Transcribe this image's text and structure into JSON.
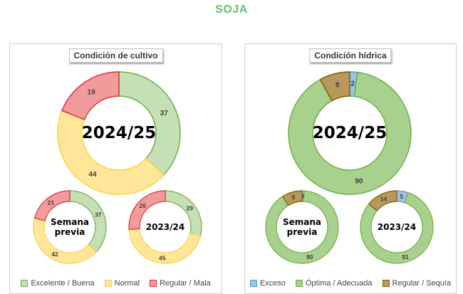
{
  "title": "SOJA",
  "chart_data": [
    {
      "type": "pie",
      "title": "Condición de cultivo",
      "legend_position": "bottom",
      "categories": [
        "Excelente / Buena",
        "Normal",
        "Regular / Mala"
      ],
      "colors": [
        {
          "fill": "#c5e0b4",
          "stroke": "#70ad47"
        },
        {
          "fill": "#ffe699",
          "stroke": "#ffd040"
        },
        {
          "fill": "#f19c9c",
          "stroke": "#e0303a"
        }
      ],
      "series": [
        {
          "name": "2024/25",
          "values": [
            37,
            44,
            19
          ]
        },
        {
          "name": "Semana previa",
          "values": [
            37,
            42,
            21
          ]
        },
        {
          "name": "2023/24",
          "values": [
            29,
            45,
            26
          ]
        }
      ]
    },
    {
      "type": "pie",
      "title": "Condición hídrica",
      "legend_position": "bottom",
      "categories": [
        "Exceso",
        "Óptima / Adecuada",
        "Regular / Sequía"
      ],
      "colors": [
        {
          "fill": "#9dc3e6",
          "stroke": "#5b9bd5"
        },
        {
          "fill": "#a9d18e",
          "stroke": "#70ad47"
        },
        {
          "fill": "#b8985c",
          "stroke": "#7f6000"
        }
      ],
      "series": [
        {
          "name": "2024/25",
          "values": [
            2,
            90,
            8
          ]
        },
        {
          "name": "Semana previa",
          "values": [
            1,
            90,
            9
          ]
        },
        {
          "name": "2023/24",
          "values": [
            5,
            81,
            14
          ]
        }
      ]
    }
  ]
}
